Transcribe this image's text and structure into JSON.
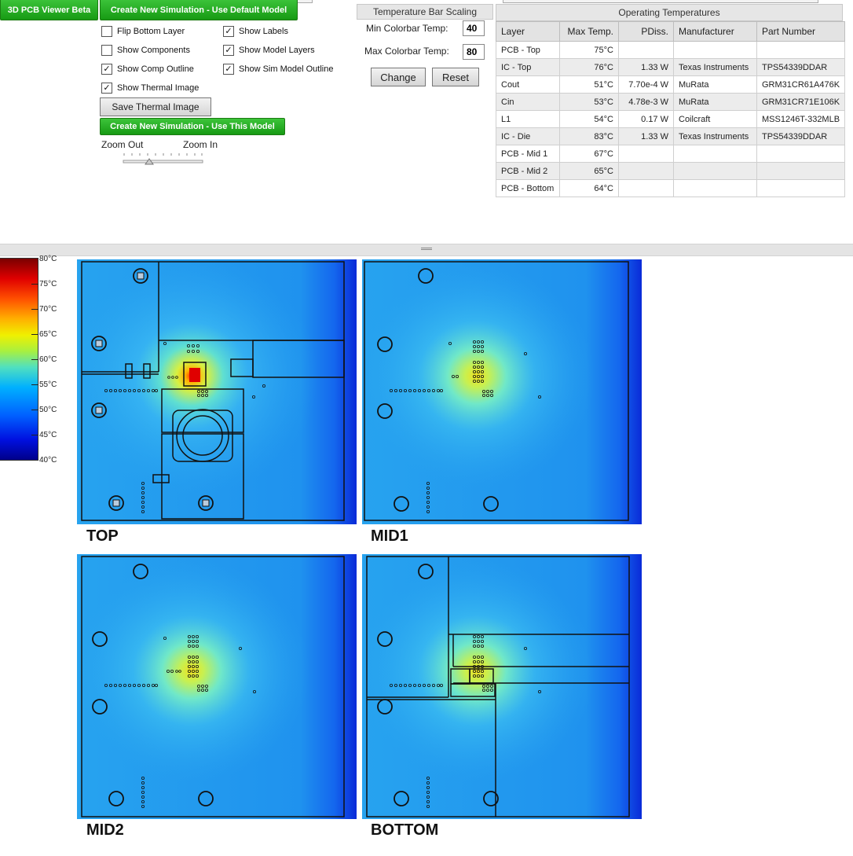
{
  "toolbar": {
    "viewer_btn": "3D PCB Viewer Beta",
    "new_sim_default": "Create New Simulation - Use Default Model",
    "save_thermal": "Save Thermal Image",
    "new_sim_this": "Create New Simulation - Use This Model"
  },
  "checkboxes": [
    {
      "label": "Flip Bottom Layer",
      "checked": false
    },
    {
      "label": "Show Labels",
      "checked": true
    },
    {
      "label": "Show Components",
      "checked": false
    },
    {
      "label": "Show Model Layers",
      "checked": true
    },
    {
      "label": "Show Comp Outline",
      "checked": true
    },
    {
      "label": "Show Sim Model Outline",
      "checked": true
    },
    {
      "label": "Show Thermal Image",
      "checked": true
    }
  ],
  "zoom": {
    "out_label": "Zoom Out",
    "in_label": "Zoom In"
  },
  "scaling": {
    "title": "Temperature Bar Scaling",
    "min_label": "Min Colorbar Temp:",
    "min_value": "40",
    "max_label": "Max Colorbar Temp:",
    "max_value": "80",
    "change_btn": "Change",
    "reset_btn": "Reset"
  },
  "optemps": {
    "title": "Operating Temperatures",
    "headers": [
      "Layer",
      "Max Temp.",
      "PDiss.",
      "Manufacturer",
      "Part Number"
    ],
    "rows": [
      [
        "PCB - Top",
        "75°C",
        "",
        "",
        ""
      ],
      [
        "IC - Top",
        "76°C",
        "1.33 W",
        "Texas Instruments",
        "TPS54339DDAR"
      ],
      [
        "Cout",
        "51°C",
        "7.70e-4 W",
        "MuRata",
        "GRM31CR61A476K"
      ],
      [
        "Cin",
        "53°C",
        "4.78e-3 W",
        "MuRata",
        "GRM31CR71E106K"
      ],
      [
        "L1",
        "54°C",
        "0.17 W",
        "Coilcraft",
        "MSS1246T-332MLB"
      ],
      [
        "IC - Die",
        "83°C",
        "1.33 W",
        "Texas Instruments",
        "TPS54339DDAR"
      ],
      [
        "PCB - Mid 1",
        "67°C",
        "",
        "",
        ""
      ],
      [
        "PCB - Mid 2",
        "65°C",
        "",
        "",
        ""
      ],
      [
        "PCB - Bottom",
        "64°C",
        "",
        "",
        ""
      ]
    ]
  },
  "colorbar": {
    "labels": [
      "80°C",
      "75°C",
      "70°C",
      "65°C",
      "60°C",
      "55°C",
      "50°C",
      "45°C",
      "40°C"
    ]
  },
  "layers": {
    "top": "TOP",
    "mid1": "MID1",
    "mid2": "MID2",
    "bottom": "BOTTOM"
  },
  "colors": {
    "green_button": "#1f9e1a",
    "board_blue": "#2aa6f0",
    "hot_red": "#e00000"
  }
}
